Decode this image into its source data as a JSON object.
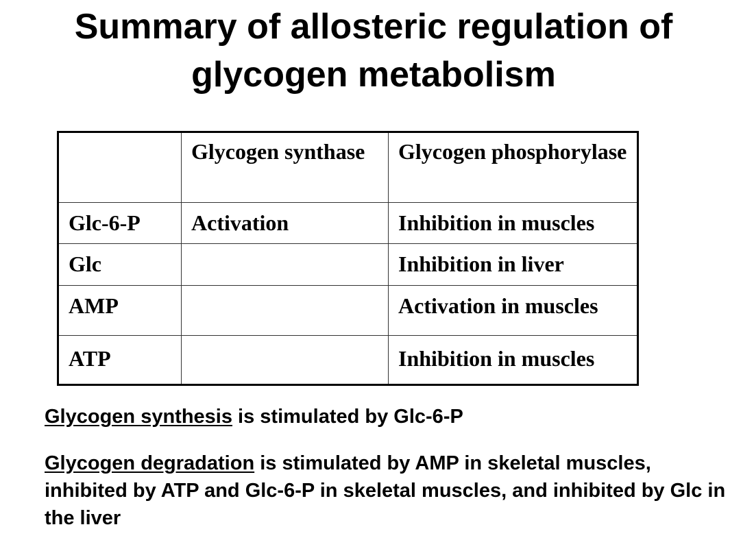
{
  "title": "Summary of allosteric regulation of glycogen metabolism",
  "table": {
    "headers": [
      "",
      "Glycogen synthase",
      "Glycogen phosphorylase"
    ],
    "rows": [
      [
        "Glc-6-P",
        "Activation",
        "Inhibition  in muscles"
      ],
      [
        "Glc",
        "",
        "Inhibition in liver"
      ],
      [
        "AMP",
        "",
        "Activation in muscles"
      ],
      [
        "ATP",
        "",
        "Inhibition  in muscles"
      ]
    ]
  },
  "notes": [
    {
      "underlined": "Glycogen synthesis",
      "rest": " is stimulated by Glc-6-P"
    },
    {
      "underlined": "Glycogen degradation",
      "rest": " is stimulated by AMP in skeletal muscles, inhibited by ATP and Glc-6-P in skeletal muscles, and inhibited by Glc in the liver"
    }
  ]
}
